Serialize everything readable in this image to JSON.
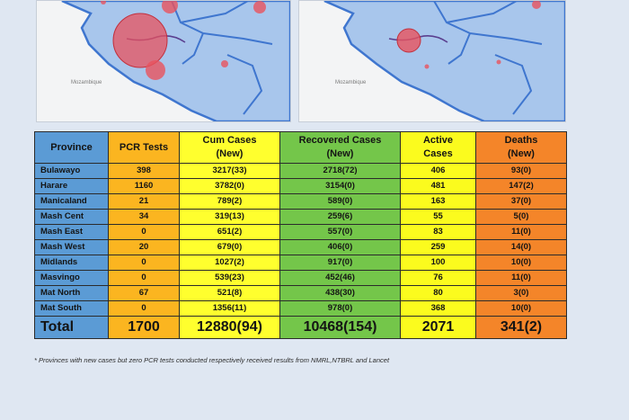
{
  "colors": {
    "province_col": "#5b9bd5",
    "pcr_col": "#fbb520",
    "cum_col": "#ffff2e",
    "recovered_col": "#74c64a",
    "active_col": "#fbfb1e",
    "deaths_col": "#f48529",
    "map_region": "#a8c6ec",
    "map_border": "#3f76cf",
    "case_bubble": "#e8525e"
  },
  "maps": {
    "left_label": "Mozambique",
    "right_label": "Mozambique"
  },
  "table": {
    "headers": {
      "province": "Province",
      "pcr": "PCR Tests",
      "cum_line1": "Cum Cases",
      "cum_line2": "(New)",
      "recovered_line1": "Recovered Cases",
      "recovered_line2": "(New)",
      "active_line1": "Active",
      "active_line2": "Cases",
      "deaths_line1": "Deaths",
      "deaths_line2": "(New)"
    },
    "rows": [
      {
        "province": "Bulawayo",
        "pcr": "398",
        "cum": "3217(33)",
        "recovered": "2718(72)",
        "active": "406",
        "deaths": "93(0)"
      },
      {
        "province": "Harare",
        "pcr": "1160",
        "cum": "3782(0)",
        "recovered": "3154(0)",
        "active": "481",
        "deaths": "147(2)"
      },
      {
        "province": "Manicaland",
        "pcr": "21",
        "cum": "789(2)",
        "recovered": "589(0)",
        "active": "163",
        "deaths": "37(0)"
      },
      {
        "province": "Mash Cent",
        "pcr": "34",
        "cum": "319(13)",
        "recovered": "259(6)",
        "active": "55",
        "deaths": "5(0)"
      },
      {
        "province": "Mash East",
        "pcr": "0",
        "cum": "651(2)",
        "recovered": "557(0)",
        "active": "83",
        "deaths": "11(0)"
      },
      {
        "province": "Mash West",
        "pcr": "20",
        "cum": "679(0)",
        "recovered": "406(0)",
        "active": "259",
        "deaths": "14(0)"
      },
      {
        "province": "Midlands",
        "pcr": "0",
        "cum": "1027(2)",
        "recovered": "917(0)",
        "active": "100",
        "deaths": "10(0)"
      },
      {
        "province": "Masvingo",
        "pcr": "0",
        "cum": "539(23)",
        "recovered": "452(46)",
        "active": "76",
        "deaths": "11(0)"
      },
      {
        "province": "Mat North",
        "pcr": "67",
        "cum": "521(8)",
        "recovered": "438(30)",
        "active": "80",
        "deaths": "3(0)"
      },
      {
        "province": "Mat South",
        "pcr": "0",
        "cum": "1356(11)",
        "recovered": "978(0)",
        "active": "368",
        "deaths": "10(0)"
      }
    ],
    "total": {
      "label": "Total",
      "pcr": "1700",
      "cum": "12880(94)",
      "recovered": "10468(154)",
      "active": "2071",
      "deaths": "341(2)"
    }
  },
  "footnote": "* Provinces  with new cases but zero  PCR tests conducted respectively received results from NMRL,NTBRL and Lancet"
}
